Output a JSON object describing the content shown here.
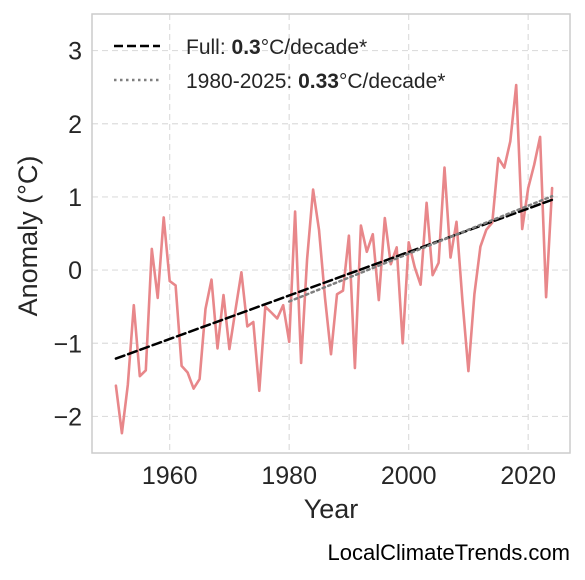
{
  "chart_data": {
    "type": "line",
    "title": "",
    "xlabel": "Year",
    "ylabel": "Anomaly (°C)",
    "xlim": [
      1947,
      2027
    ],
    "ylim": [
      -2.5,
      3.5
    ],
    "xticks": [
      1960,
      1980,
      2000,
      2020
    ],
    "yticks": [
      -2,
      -1,
      0,
      1,
      2,
      3
    ],
    "xtick_labels": [
      "1960",
      "1980",
      "2000",
      "2020"
    ],
    "ytick_labels": [
      "−2",
      "−1",
      "0",
      "1",
      "2",
      "3"
    ],
    "grid": true,
    "legend_position": "top-left",
    "series": [
      {
        "style": "solid",
        "color": "#e8878a",
        "x": [
          1951,
          1952,
          1953,
          1954,
          1955,
          1956,
          1957,
          1958,
          1959,
          1960,
          1961,
          1962,
          1963,
          1964,
          1965,
          1966,
          1967,
          1968,
          1969,
          1970,
          1971,
          1972,
          1973,
          1974,
          1975,
          1976,
          1977,
          1978,
          1979,
          1980,
          1981,
          1982,
          1983,
          1984,
          1985,
          1986,
          1987,
          1988,
          1989,
          1990,
          1991,
          1992,
          1993,
          1994,
          1995,
          1996,
          1997,
          1998,
          1999,
          2000,
          2001,
          2002,
          2003,
          2004,
          2005,
          2006,
          2007,
          2008,
          2009,
          2010,
          2011,
          2012,
          2013,
          2014,
          2015,
          2016,
          2017,
          2018,
          2019,
          2020,
          2021,
          2022,
          2023,
          2024
        ],
        "y": [
          -1.58,
          -2.23,
          -1.57,
          -0.48,
          -1.45,
          -1.37,
          0.29,
          -0.38,
          0.72,
          -0.15,
          -0.21,
          -1.31,
          -1.4,
          -1.62,
          -1.49,
          -0.53,
          -0.13,
          -1.07,
          -0.34,
          -1.08,
          -0.55,
          -0.03,
          -0.77,
          -0.71,
          -1.65,
          -0.5,
          -0.58,
          -0.66,
          -0.48,
          -0.98,
          0.8,
          -1.27,
          0.15,
          1.1,
          0.55,
          -0.38,
          -1.15,
          -0.33,
          -0.28,
          0.47,
          -1.34,
          0.61,
          0.25,
          0.49,
          -0.41,
          0.71,
          0.08,
          0.31,
          -1.0,
          0.38,
          0.04,
          -0.2,
          0.92,
          -0.07,
          0.1,
          1.4,
          0.17,
          0.66,
          -0.41,
          -1.38,
          -0.33,
          0.32,
          0.55,
          0.65,
          1.53,
          1.4,
          1.76,
          2.53,
          0.56,
          1.12,
          1.44,
          1.82,
          -0.37,
          1.12
        ]
      },
      {
        "name": "Full",
        "rate": "0.3",
        "unit": "°C/decade*",
        "style": "dashed",
        "color": "#000000",
        "x": [
          1951,
          2024
        ],
        "y": [
          -1.21,
          0.96
        ]
      },
      {
        "name": "1980-2025",
        "rate": "0.33",
        "unit": "°C/decade*",
        "style": "dotted",
        "color": "#7f7f7f",
        "x": [
          1980,
          2024
        ],
        "y": [
          -0.43,
          1.01
        ]
      }
    ]
  },
  "legend": {
    "full_prefix": "Full: ",
    "full_rate": "0.3",
    "full_unit": "°C/decade*",
    "recent_prefix": "1980-2025: ",
    "recent_rate": "0.33",
    "recent_unit": "°C/decade*"
  },
  "watermark": "LocalClimateTrends.com",
  "colors": {
    "anomaly_line": "#e8878a",
    "trend_full": "#000000",
    "trend_recent": "#7f7f7f",
    "grid": "#dddddd",
    "frame": "#cccccc"
  }
}
